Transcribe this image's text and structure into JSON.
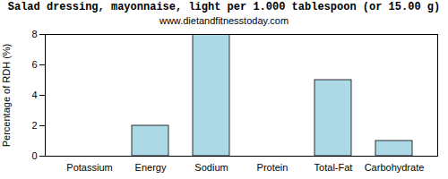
{
  "chart_data": {
    "type": "bar",
    "title": "Salad dressing, mayonnaise, light per 1.000 tablespoon (or 15.00 g)",
    "subtitle": "www.dietandfitnesstoday.com",
    "y_label": "Percentage of RDH (%)",
    "categories": [
      "Potassium",
      "Energy",
      "Sodium",
      "Protein",
      "Total-Fat",
      "Carbohydrate"
    ],
    "values": [
      0,
      2,
      8,
      0,
      5,
      1
    ],
    "color": "#add8e6",
    "ylim": [
      0,
      8
    ],
    "yticks": [
      0,
      2,
      4,
      6,
      8
    ],
    "grid": false
  }
}
